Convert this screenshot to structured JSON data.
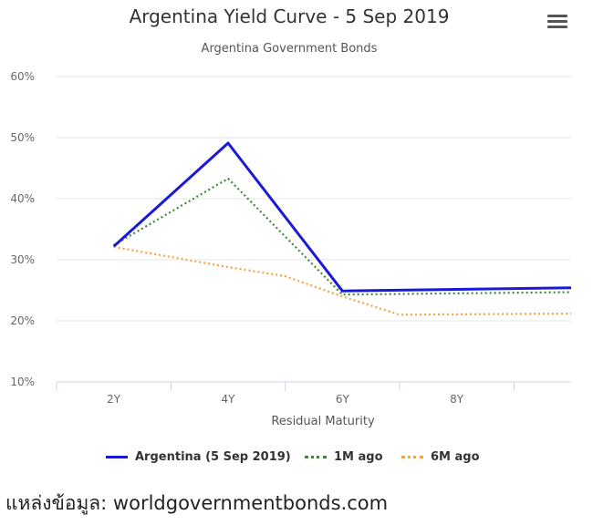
{
  "chart_data": {
    "type": "line",
    "title": "Argentina Yield Curve - 5 Sep 2019",
    "subtitle": "Argentina Government Bonds",
    "xlabel": "Residual Maturity",
    "ylabel": "",
    "x_tick_labels": [
      "2Y",
      "4Y",
      "6Y",
      "8Y"
    ],
    "y_tick_labels": [
      "10%",
      "20%",
      "30%",
      "40%",
      "50%",
      "60%"
    ],
    "ylim": [
      10,
      60
    ],
    "grid": true,
    "legend_position": "bottom",
    "series": [
      {
        "name": "Argentina (5 Sep 2019)",
        "color": "#1a1ad6",
        "style": "solid",
        "points": [
          [
            1,
            32.2
          ],
          [
            3,
            49.1
          ],
          [
            5,
            24.9
          ],
          [
            9,
            25.4
          ]
        ]
      },
      {
        "name": "1M ago",
        "color": "#3a8a3a",
        "style": "dotted",
        "points": [
          [
            1,
            32.4
          ],
          [
            3,
            43.3
          ],
          [
            5,
            24.3
          ],
          [
            9,
            24.7
          ]
        ]
      },
      {
        "name": "6M ago",
        "color": "#f5a442",
        "style": "dotted",
        "points": [
          [
            1,
            32.1
          ],
          [
            3,
            28.8
          ],
          [
            4,
            27.3
          ],
          [
            5,
            24.0
          ],
          [
            6,
            21.0
          ],
          [
            9,
            21.2
          ]
        ]
      }
    ]
  },
  "menu": {
    "icon": "hamburger-menu-icon"
  },
  "source": {
    "text": "แหล่งข้อมูล: worldgovernmentbonds.com"
  }
}
